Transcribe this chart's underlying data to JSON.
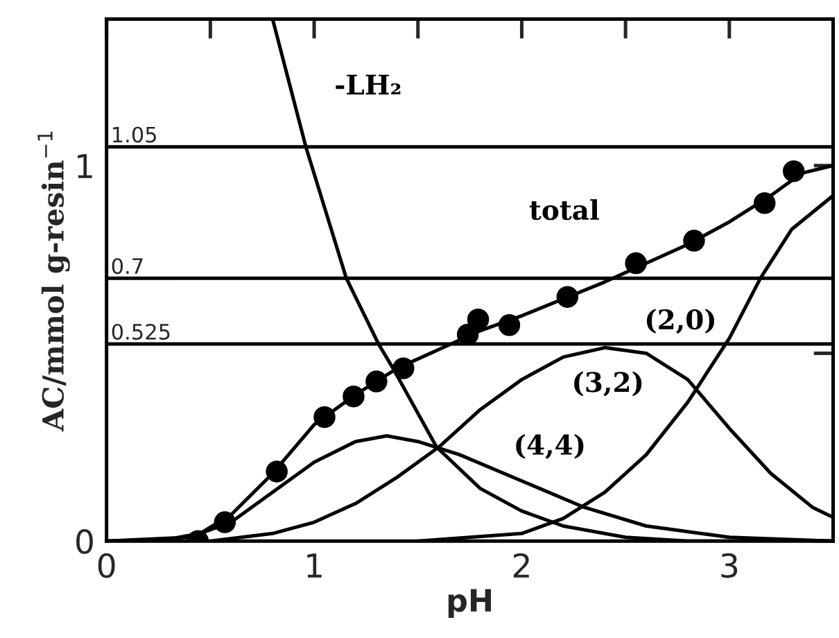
{
  "chart_data": {
    "type": "line",
    "xlabel": "pH",
    "ylabel": "AC/mmol g-resin$^{−1}$",
    "xlim": [
      0,
      3.5
    ],
    "ylim": [
      0,
      1.39
    ],
    "xticks": [
      0,
      {
        "value": 0.5,
        "label": null
      },
      1,
      {
        "value": 1.5,
        "label": null
      },
      2,
      {
        "value": 2.5,
        "label": null
      },
      3
    ],
    "yticks": [
      0,
      {
        "value": 0.5,
        "label": null
      },
      1
    ],
    "grid": false,
    "legend": false,
    "series": [
      {
        "type": "scatter",
        "color": "#000000",
        "marker": "circle",
        "x": [
          0.44,
          0.57,
          0.82,
          1.05,
          1.19,
          1.3,
          1.43,
          1.74,
          1.79,
          1.94,
          2.22,
          2.55,
          2.83,
          3.17,
          3.31
        ],
        "values": [
          0.0,
          0.05,
          0.185,
          0.33,
          0.385,
          0.425,
          0.46,
          0.55,
          0.59,
          0.575,
          0.65,
          0.74,
          0.8,
          0.9,
          0.985
        ]
      },
      {
        "name": "total",
        "color": "#000000",
        "line_style": "solid",
        "x": [
          0,
          0.3,
          0.45,
          0.6,
          0.8,
          1.0,
          1.2,
          1.4,
          1.6,
          1.8,
          2.0,
          2.2,
          2.4,
          2.6,
          2.8,
          3.0,
          3.2,
          3.35,
          3.5
        ],
        "values": [
          0,
          0.005,
          0.02,
          0.07,
          0.18,
          0.31,
          0.39,
          0.46,
          0.51,
          0.56,
          0.6,
          0.645,
          0.69,
          0.74,
          0.79,
          0.85,
          0.92,
          0.98,
          1.0
        ]
      },
      {
        "name": "-LH₂",
        "color": "#000000",
        "line_style": "solid",
        "x": [
          0.8,
          0.96,
          1.155,
          1.31,
          1.38,
          1.59,
          1.8,
          2.0,
          2.2,
          2.5,
          2.8,
          3.5
        ],
        "values": [
          1.39,
          1.05,
          0.7,
          0.525,
          0.46,
          0.25,
          0.14,
          0.08,
          0.04,
          0.01,
          0.0,
          0.0
        ]
      },
      {
        "name": "(4,4)",
        "color": "#000000",
        "line_style": "solid",
        "x": [
          0,
          0.4,
          0.6,
          0.8,
          1.0,
          1.2,
          1.35,
          1.5,
          1.7,
          2.0,
          2.3,
          2.6,
          3.0,
          3.5
        ],
        "values": [
          0,
          0.01,
          0.05,
          0.13,
          0.21,
          0.265,
          0.28,
          0.265,
          0.23,
          0.16,
          0.09,
          0.04,
          0.01,
          0.0
        ]
      },
      {
        "name": "(3,2)",
        "color": "#000000",
        "line_style": "solid",
        "x": [
          0.5,
          0.8,
          1.0,
          1.2,
          1.4,
          1.6,
          1.8,
          2.0,
          2.2,
          2.4,
          2.6,
          2.8,
          3.0,
          3.2,
          3.4,
          3.5
        ],
        "values": [
          0.0,
          0.02,
          0.05,
          0.1,
          0.17,
          0.25,
          0.35,
          0.43,
          0.49,
          0.515,
          0.5,
          0.43,
          0.3,
          0.18,
          0.09,
          0.063
        ]
      },
      {
        "name": "(2,0)",
        "color": "#000000",
        "line_style": "solid",
        "x": [
          1.5,
          2.0,
          2.2,
          2.4,
          2.6,
          2.8,
          3.0,
          3.15,
          3.3,
          3.5
        ],
        "values": [
          0.0,
          0.02,
          0.06,
          0.13,
          0.23,
          0.37,
          0.54,
          0.7,
          0.83,
          0.92
        ]
      }
    ],
    "ref_lines": [
      {
        "axis": "y",
        "value": 1.05,
        "label": "1.05",
        "color": "#000000"
      },
      {
        "axis": "y",
        "value": 0.7,
        "label": "0.7",
        "color": "#000000"
      },
      {
        "axis": "y",
        "value": 0.525,
        "label": "0.525",
        "color": "#000000"
      }
    ]
  }
}
